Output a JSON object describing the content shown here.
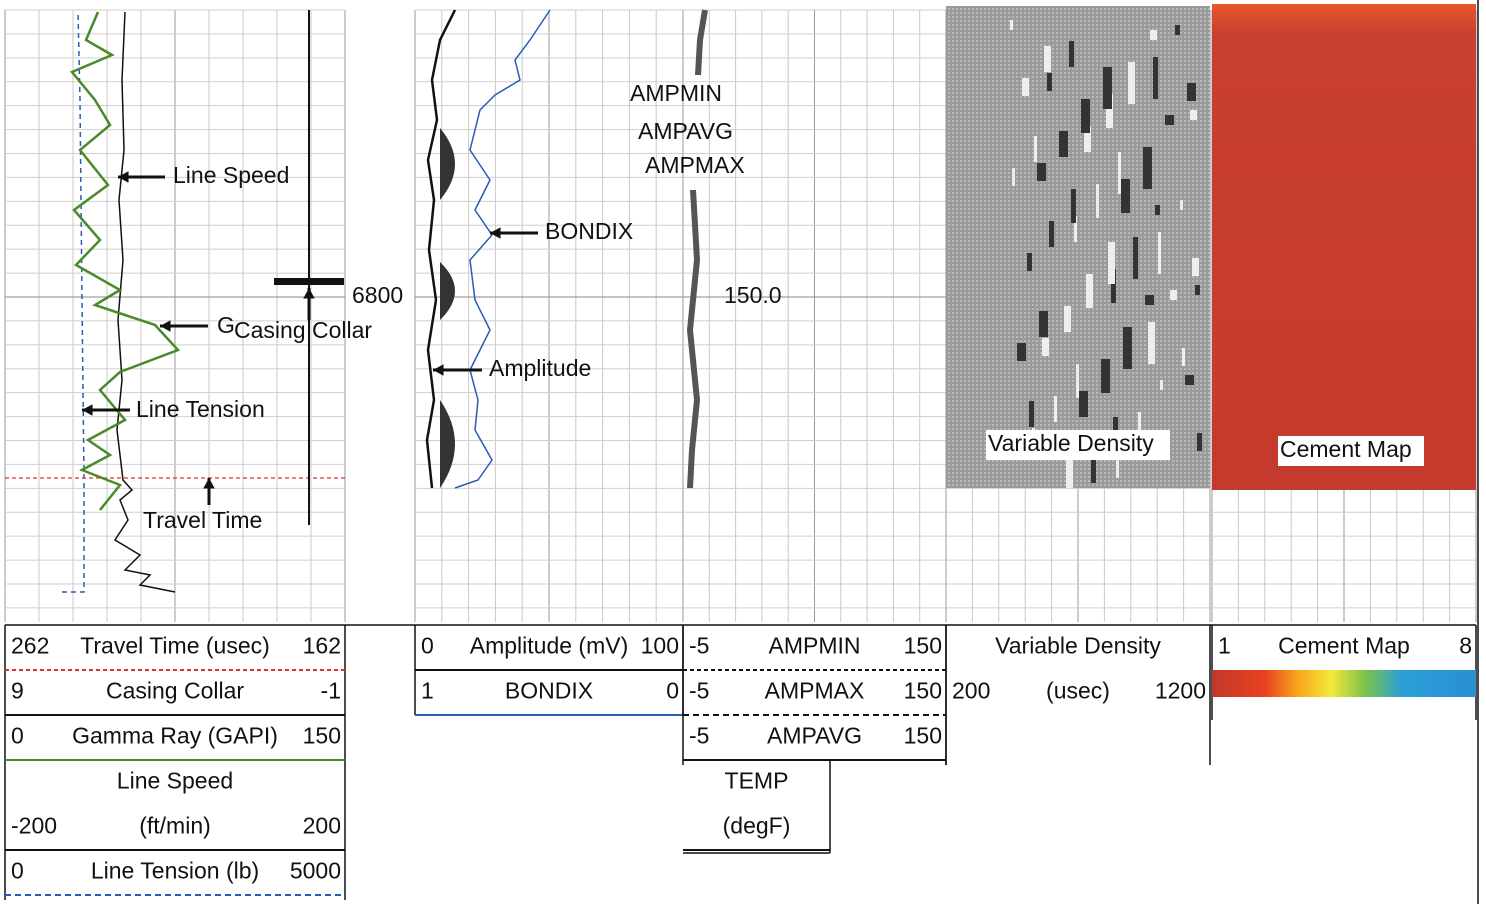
{
  "plot": {
    "annotations": {
      "line_speed": "Line Speed",
      "gamma_fragment": "G",
      "casing_collar": "Casing Collar",
      "line_tension": "Line Tension",
      "travel_time": "Travel Time",
      "bondix": "BONDIX",
      "amplitude": "Amplitude",
      "ampmin": "AMPMIN",
      "ampavg": "AMPAVG",
      "ampmax": "AMPMAX",
      "variable_density": "Variable Density",
      "cement_map": "Cement Map"
    },
    "depth_label": "6800",
    "temp_label": "150.0"
  },
  "header": {
    "tracks": [
      {
        "rows": [
          [
            "262",
            "Travel Time (usec)",
            "162"
          ],
          [
            "9",
            "Casing Collar",
            "-1"
          ],
          [
            "0",
            "Gamma Ray (GAPI)",
            "150"
          ],
          [
            "Line Speed"
          ],
          [
            "-200",
            "(ft/min)",
            "200"
          ],
          [
            "0",
            "Line Tension (lb)",
            "5000"
          ]
        ]
      },
      {
        "rows": [
          [
            "0",
            "Amplitude (mV)",
            "100"
          ],
          [
            "1",
            "BONDIX",
            "0"
          ]
        ]
      },
      {
        "rows": [
          [
            "-5",
            "AMPMIN",
            "150"
          ],
          [
            "-5",
            "AMPMAX",
            "150"
          ],
          [
            "-5",
            "AMPAVG",
            "150"
          ],
          [
            "TEMP"
          ],
          [
            "(degF)"
          ]
        ]
      },
      {
        "rows": [
          [
            "Variable Density"
          ],
          [
            "200",
            "(usec)",
            "1200"
          ]
        ]
      },
      {
        "rows": [
          [
            "1",
            "Cement Map",
            "8"
          ]
        ]
      }
    ]
  }
}
